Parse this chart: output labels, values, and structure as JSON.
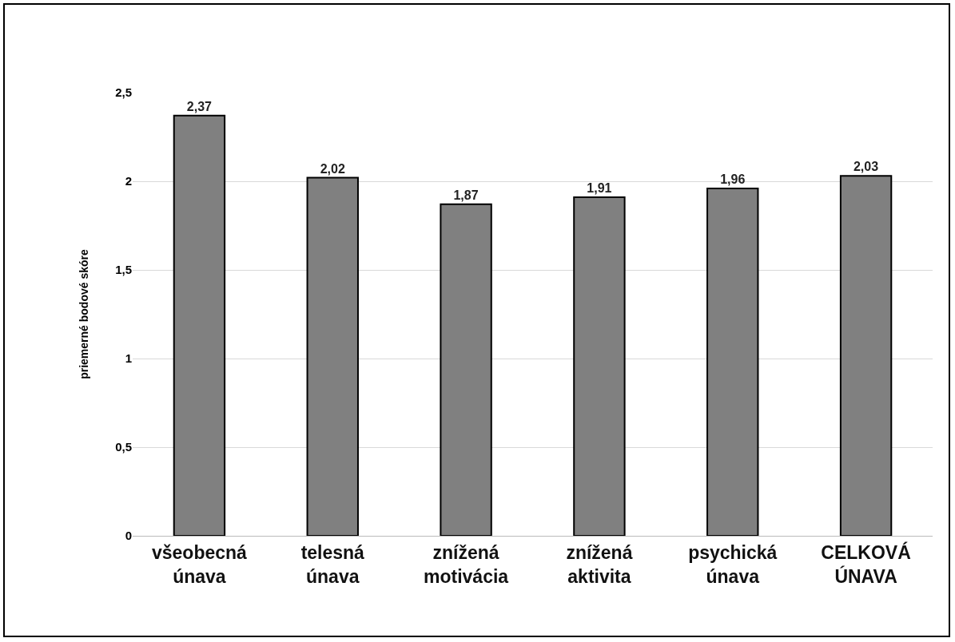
{
  "chart_data": {
    "type": "bar",
    "ylabel": "priemerné bodové skóre",
    "categories": [
      "všeobecná únava",
      "telesná únava",
      "znížená motivácia",
      "znížená aktivita",
      "psychická únava",
      "CELKOVÁ ÚNAVA"
    ],
    "values": [
      2.37,
      2.02,
      1.87,
      1.91,
      1.96,
      2.03
    ],
    "value_labels": [
      "2,37",
      "2,02",
      "1,87",
      "1,91",
      "1,96",
      "2,03"
    ],
    "color": "#808080",
    "ylim": [
      0,
      2.5
    ],
    "yticks": [
      0,
      {
        "value": 0.5,
        "label": "0,5"
      },
      1,
      {
        "value": 1.5,
        "label": "1,5"
      },
      2,
      {
        "value": 2.5,
        "label": "2,5"
      }
    ],
    "grid": "y"
  }
}
